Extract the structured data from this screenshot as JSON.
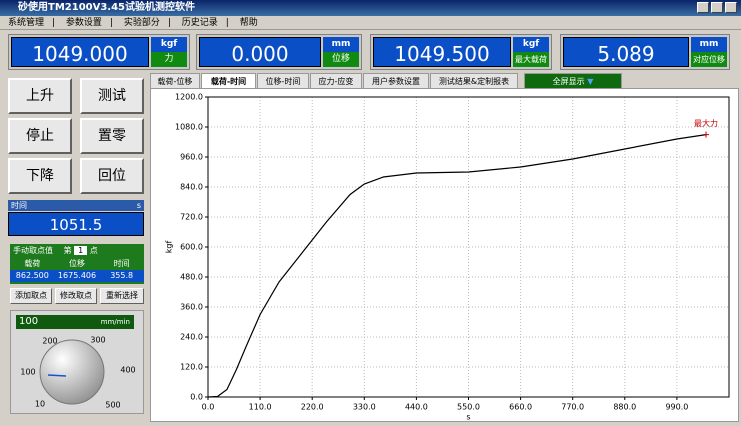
{
  "window": {
    "title": "砂使用TM2100V3.45试验机测控软件",
    "menu": [
      "系统管理",
      "参数设置",
      "实验部分",
      "历史记录",
      "帮助"
    ]
  },
  "displays": [
    {
      "value": "1049.000",
      "unit": "kgf",
      "label": "力"
    },
    {
      "value": "0.000",
      "unit": "mm",
      "label": "位移"
    },
    {
      "value": "1049.500",
      "unit": "kgf",
      "label": "最大载荷"
    },
    {
      "value": "5.089",
      "unit": "mm",
      "label": "对应位移"
    }
  ],
  "buttons": [
    "上升",
    "测试",
    "停止",
    "置零",
    "下降",
    "回位"
  ],
  "time_panel": {
    "label": "时间",
    "unit": "s",
    "value": "1051.5"
  },
  "manual_points": {
    "title": "手动取点值",
    "prefix": "第",
    "index": "1",
    "suffix": "点",
    "headers": [
      "载荷",
      "位移",
      "时间"
    ],
    "row": [
      "862.500",
      "1675.406",
      "355.8"
    ]
  },
  "point_buttons": [
    "添加取点",
    "修改取点",
    "重新选择"
  ],
  "speed": {
    "value": "100",
    "unit": "mm/min",
    "dial_labels": [
      "10",
      "100",
      "200",
      "300",
      "400",
      "500"
    ]
  },
  "tabs": [
    "载荷-位移",
    "载荷-时间",
    "位移-时间",
    "应力-应变",
    "用户参数设置",
    "测试结果&定制报表"
  ],
  "fullscreen": "全屏显示",
  "chart_data": {
    "type": "line",
    "xlabel": "s",
    "ylabel": "kgf",
    "x": [
      0,
      20,
      40,
      60,
      80,
      110,
      150,
      200,
      250,
      300,
      330,
      370,
      440,
      550,
      660,
      770,
      880,
      990,
      1051.5
    ],
    "values": [
      0,
      2,
      30,
      110,
      200,
      330,
      460,
      580,
      700,
      810,
      852,
      880,
      896,
      900,
      920,
      952,
      992,
      1032,
      1049.5
    ],
    "color": "#000000",
    "xlim": [
      0,
      1100
    ],
    "ylim": [
      0,
      1200
    ],
    "xticks": [
      {
        "value": 0,
        "label": "0.0"
      },
      {
        "value": 110,
        "label": "110.0"
      },
      {
        "value": 220,
        "label": "220.0"
      },
      {
        "value": 330,
        "label": "330.0"
      },
      {
        "value": 440,
        "label": "440.0"
      },
      {
        "value": 550,
        "label": "550.0"
      },
      {
        "value": 660,
        "label": "660.0"
      },
      {
        "value": 770,
        "label": "770.0"
      },
      {
        "value": 880,
        "label": "880.0"
      },
      {
        "value": 990,
        "label": "990.0"
      }
    ],
    "yticks": [
      {
        "value": 0,
        "label": "0.0"
      },
      {
        "value": 120,
        "label": "120.0"
      },
      {
        "value": 240,
        "label": "240.0"
      },
      {
        "value": 360,
        "label": "360.0"
      },
      {
        "value": 480,
        "label": "480.0"
      },
      {
        "value": 600,
        "label": "600.0"
      },
      {
        "value": 720,
        "label": "720.0"
      },
      {
        "value": 840,
        "label": "840.0"
      },
      {
        "value": 960,
        "label": "960.0"
      },
      {
        "value": 1080,
        "label": "1080.0"
      },
      {
        "value": 1200,
        "label": "1200.0"
      }
    ],
    "grid": true,
    "annotations": [
      {
        "text": "最大力",
        "x": 1051.5,
        "y": 1049.5,
        "color": "#c00000"
      }
    ]
  }
}
